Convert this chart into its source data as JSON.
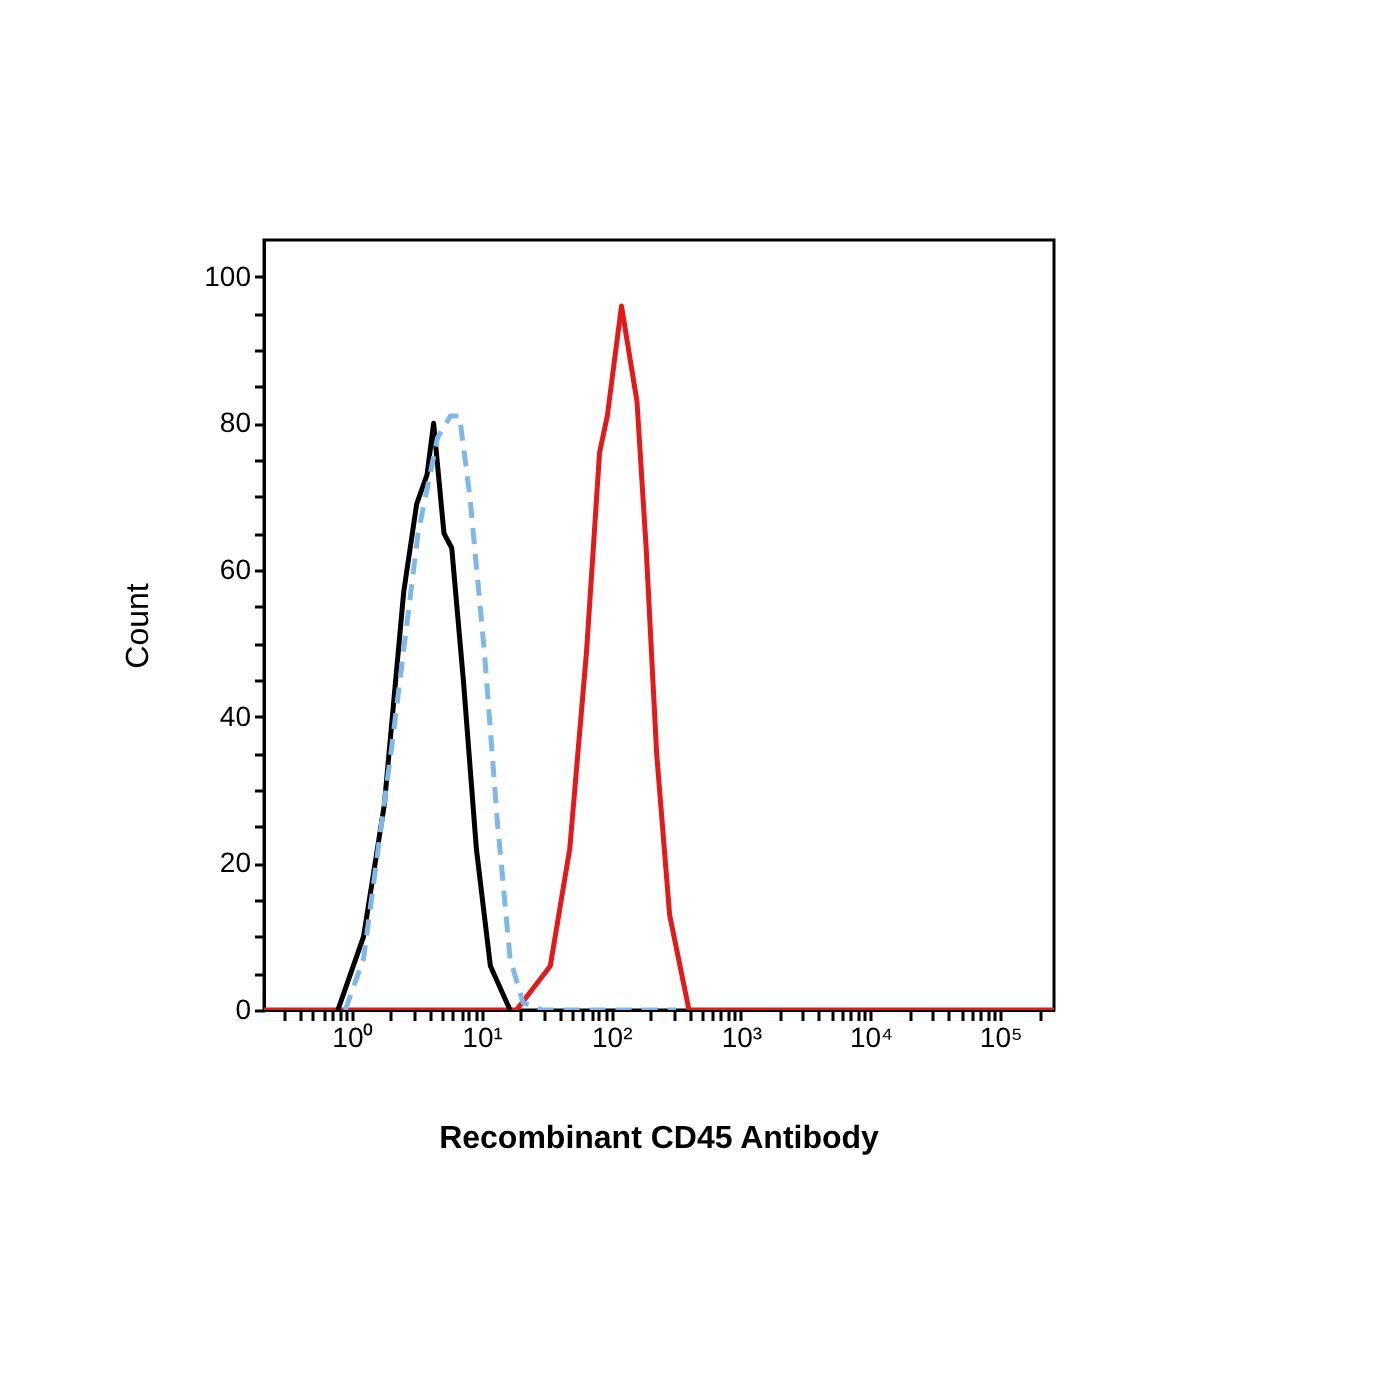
{
  "chart_data": {
    "type": "line",
    "title": "Recombinant CD45 Antibody",
    "ylabel": "Count",
    "log": "x",
    "xlim": [
      0.21,
      260000
    ],
    "ylim": [
      0,
      105
    ],
    "xticks": [
      {
        "value": 0.3,
        "label": null
      },
      {
        "value": 0.4,
        "label": null
      },
      {
        "value": 0.5,
        "label": null
      },
      {
        "value": 0.6,
        "label": null
      },
      {
        "value": 0.7,
        "label": null
      },
      {
        "value": 0.8,
        "label": null
      },
      {
        "value": 0.9,
        "label": null
      },
      {
        "value": 1,
        "label": "10⁰"
      },
      {
        "value": 2,
        "label": null
      },
      {
        "value": 3,
        "label": null
      },
      {
        "value": 4,
        "label": null
      },
      {
        "value": 5,
        "label": null
      },
      {
        "value": 6,
        "label": null
      },
      {
        "value": 7,
        "label": null
      },
      {
        "value": 8,
        "label": null
      },
      {
        "value": 9,
        "label": null
      },
      {
        "value": 10,
        "label": "10¹"
      },
      {
        "value": 20,
        "label": null
      },
      {
        "value": 30,
        "label": null
      },
      {
        "value": 40,
        "label": null
      },
      {
        "value": 50,
        "label": null
      },
      {
        "value": 60,
        "label": null
      },
      {
        "value": 70,
        "label": null
      },
      {
        "value": 80,
        "label": null
      },
      {
        "value": 90,
        "label": null
      },
      {
        "value": 100,
        "label": "10²"
      },
      {
        "value": 200,
        "label": null
      },
      {
        "value": 300,
        "label": null
      },
      {
        "value": 400,
        "label": null
      },
      {
        "value": 500,
        "label": null
      },
      {
        "value": 600,
        "label": null
      },
      {
        "value": 700,
        "label": null
      },
      {
        "value": 800,
        "label": null
      },
      {
        "value": 900,
        "label": null
      },
      {
        "value": 1000,
        "label": "10³"
      },
      {
        "value": 2000,
        "label": null
      },
      {
        "value": 3000,
        "label": null
      },
      {
        "value": 4000,
        "label": null
      },
      {
        "value": 5000,
        "label": null
      },
      {
        "value": 6000,
        "label": null
      },
      {
        "value": 7000,
        "label": null
      },
      {
        "value": 8000,
        "label": null
      },
      {
        "value": 9000,
        "label": null
      },
      {
        "value": 10000,
        "label": "10⁴"
      },
      {
        "value": 20000,
        "label": null
      },
      {
        "value": 30000,
        "label": null
      },
      {
        "value": 40000,
        "label": null
      },
      {
        "value": 50000,
        "label": null
      },
      {
        "value": 60000,
        "label": null
      },
      {
        "value": 70000,
        "label": null
      },
      {
        "value": 80000,
        "label": null
      },
      {
        "value": 90000,
        "label": null
      },
      {
        "value": 100000,
        "label": "10⁵"
      },
      {
        "value": 200000,
        "label": null
      }
    ],
    "yticks": [
      0,
      {
        "value": 5,
        "label": null
      },
      {
        "value": 10,
        "label": null
      },
      {
        "value": 15,
        "label": null
      },
      20,
      {
        "value": 25,
        "label": null
      },
      {
        "value": 30,
        "label": null
      },
      {
        "value": 35,
        "label": null
      },
      40,
      {
        "value": 45,
        "label": null
      },
      {
        "value": 50,
        "label": null
      },
      {
        "value": 55,
        "label": null
      },
      60,
      {
        "value": 65,
        "label": null
      },
      {
        "value": 70,
        "label": null
      },
      {
        "value": 75,
        "label": null
      },
      80,
      {
        "value": 85,
        "label": null
      },
      {
        "value": 90,
        "label": null
      },
      {
        "value": 95,
        "label": null
      },
      100
    ],
    "grid": false,
    "marker": "none",
    "series": [
      {
        "color": "#e31a1c",
        "line_style": "solid",
        "x": [
          0.21,
          18.6,
          33.9,
          47.9,
          64.6,
          81.3,
          93.3,
          120,
          158,
          186,
          224,
          282,
          398,
          260000
        ],
        "values": [
          0,
          0,
          6,
          22,
          49,
          76,
          81,
          96,
          83,
          63,
          35,
          13,
          0,
          0
        ]
      },
      {
        "color": "#000000",
        "line_style": "solid",
        "x": [
          0.78,
          1.23,
          1.78,
          2.51,
          3.16,
          3.8,
          4.27,
          5.13,
          5.89,
          7.24,
          9.12,
          11.7,
          16.6
        ],
        "values": [
          0,
          10,
          28,
          57,
          69,
          73,
          80,
          65,
          63,
          45,
          22,
          6,
          0
        ]
      },
      {
        "color": "#7fb8e6",
        "line_style": "dashed",
        "x": [
          0.89,
          1.23,
          2.0,
          3.24,
          4.57,
          5.75,
          6.76,
          8.13,
          10.5,
          13.2,
          16.6,
          20.9,
          29.5,
          316
        ],
        "values": [
          0,
          7,
          35,
          65,
          78,
          81,
          81,
          70,
          49,
          26,
          7,
          1,
          0,
          0
        ]
      }
    ]
  }
}
